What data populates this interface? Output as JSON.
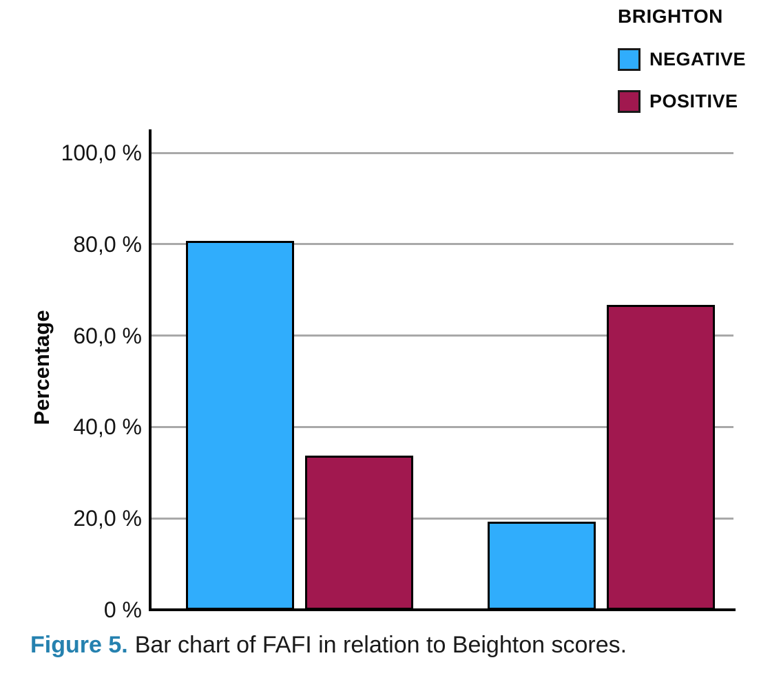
{
  "legend": {
    "title": "BRIGHTON",
    "items": [
      {
        "label": "NEGATIVE",
        "color": "#30ADFC"
      },
      {
        "label": "POSITIVE",
        "color": "#A1184F"
      }
    ]
  },
  "chart_data": {
    "type": "bar",
    "title": "",
    "xlabel": "",
    "ylabel": "Percentage",
    "ylim": [
      0,
      100
    ],
    "grid": true,
    "legend_position": "top-right",
    "gridline_color": "#A9A9A9",
    "bar_border_color": "#000000",
    "yticks": [
      {
        "value": 0,
        "label": "0 %"
      },
      {
        "value": 20,
        "label": "20,0 %"
      },
      {
        "value": 40,
        "label": "40,0 %"
      },
      {
        "value": 60,
        "label": "60,0 %"
      },
      {
        "value": 80,
        "label": "80,0 %"
      },
      {
        "value": 100,
        "label": "100,0 %"
      }
    ],
    "categories": [
      "",
      ""
    ],
    "series": [
      {
        "name": "NEGATIVE",
        "color": "#30ADFC",
        "values": [
          80.7,
          19.3
        ]
      },
      {
        "name": "POSITIVE",
        "color": "#A1184F",
        "values": [
          33.8,
          66.7
        ]
      }
    ]
  },
  "caption": {
    "prefix": "Figure 5.",
    "text": "Bar chart of FAFI in relation to Beighton scores.",
    "prefix_color": "#2581AF"
  }
}
